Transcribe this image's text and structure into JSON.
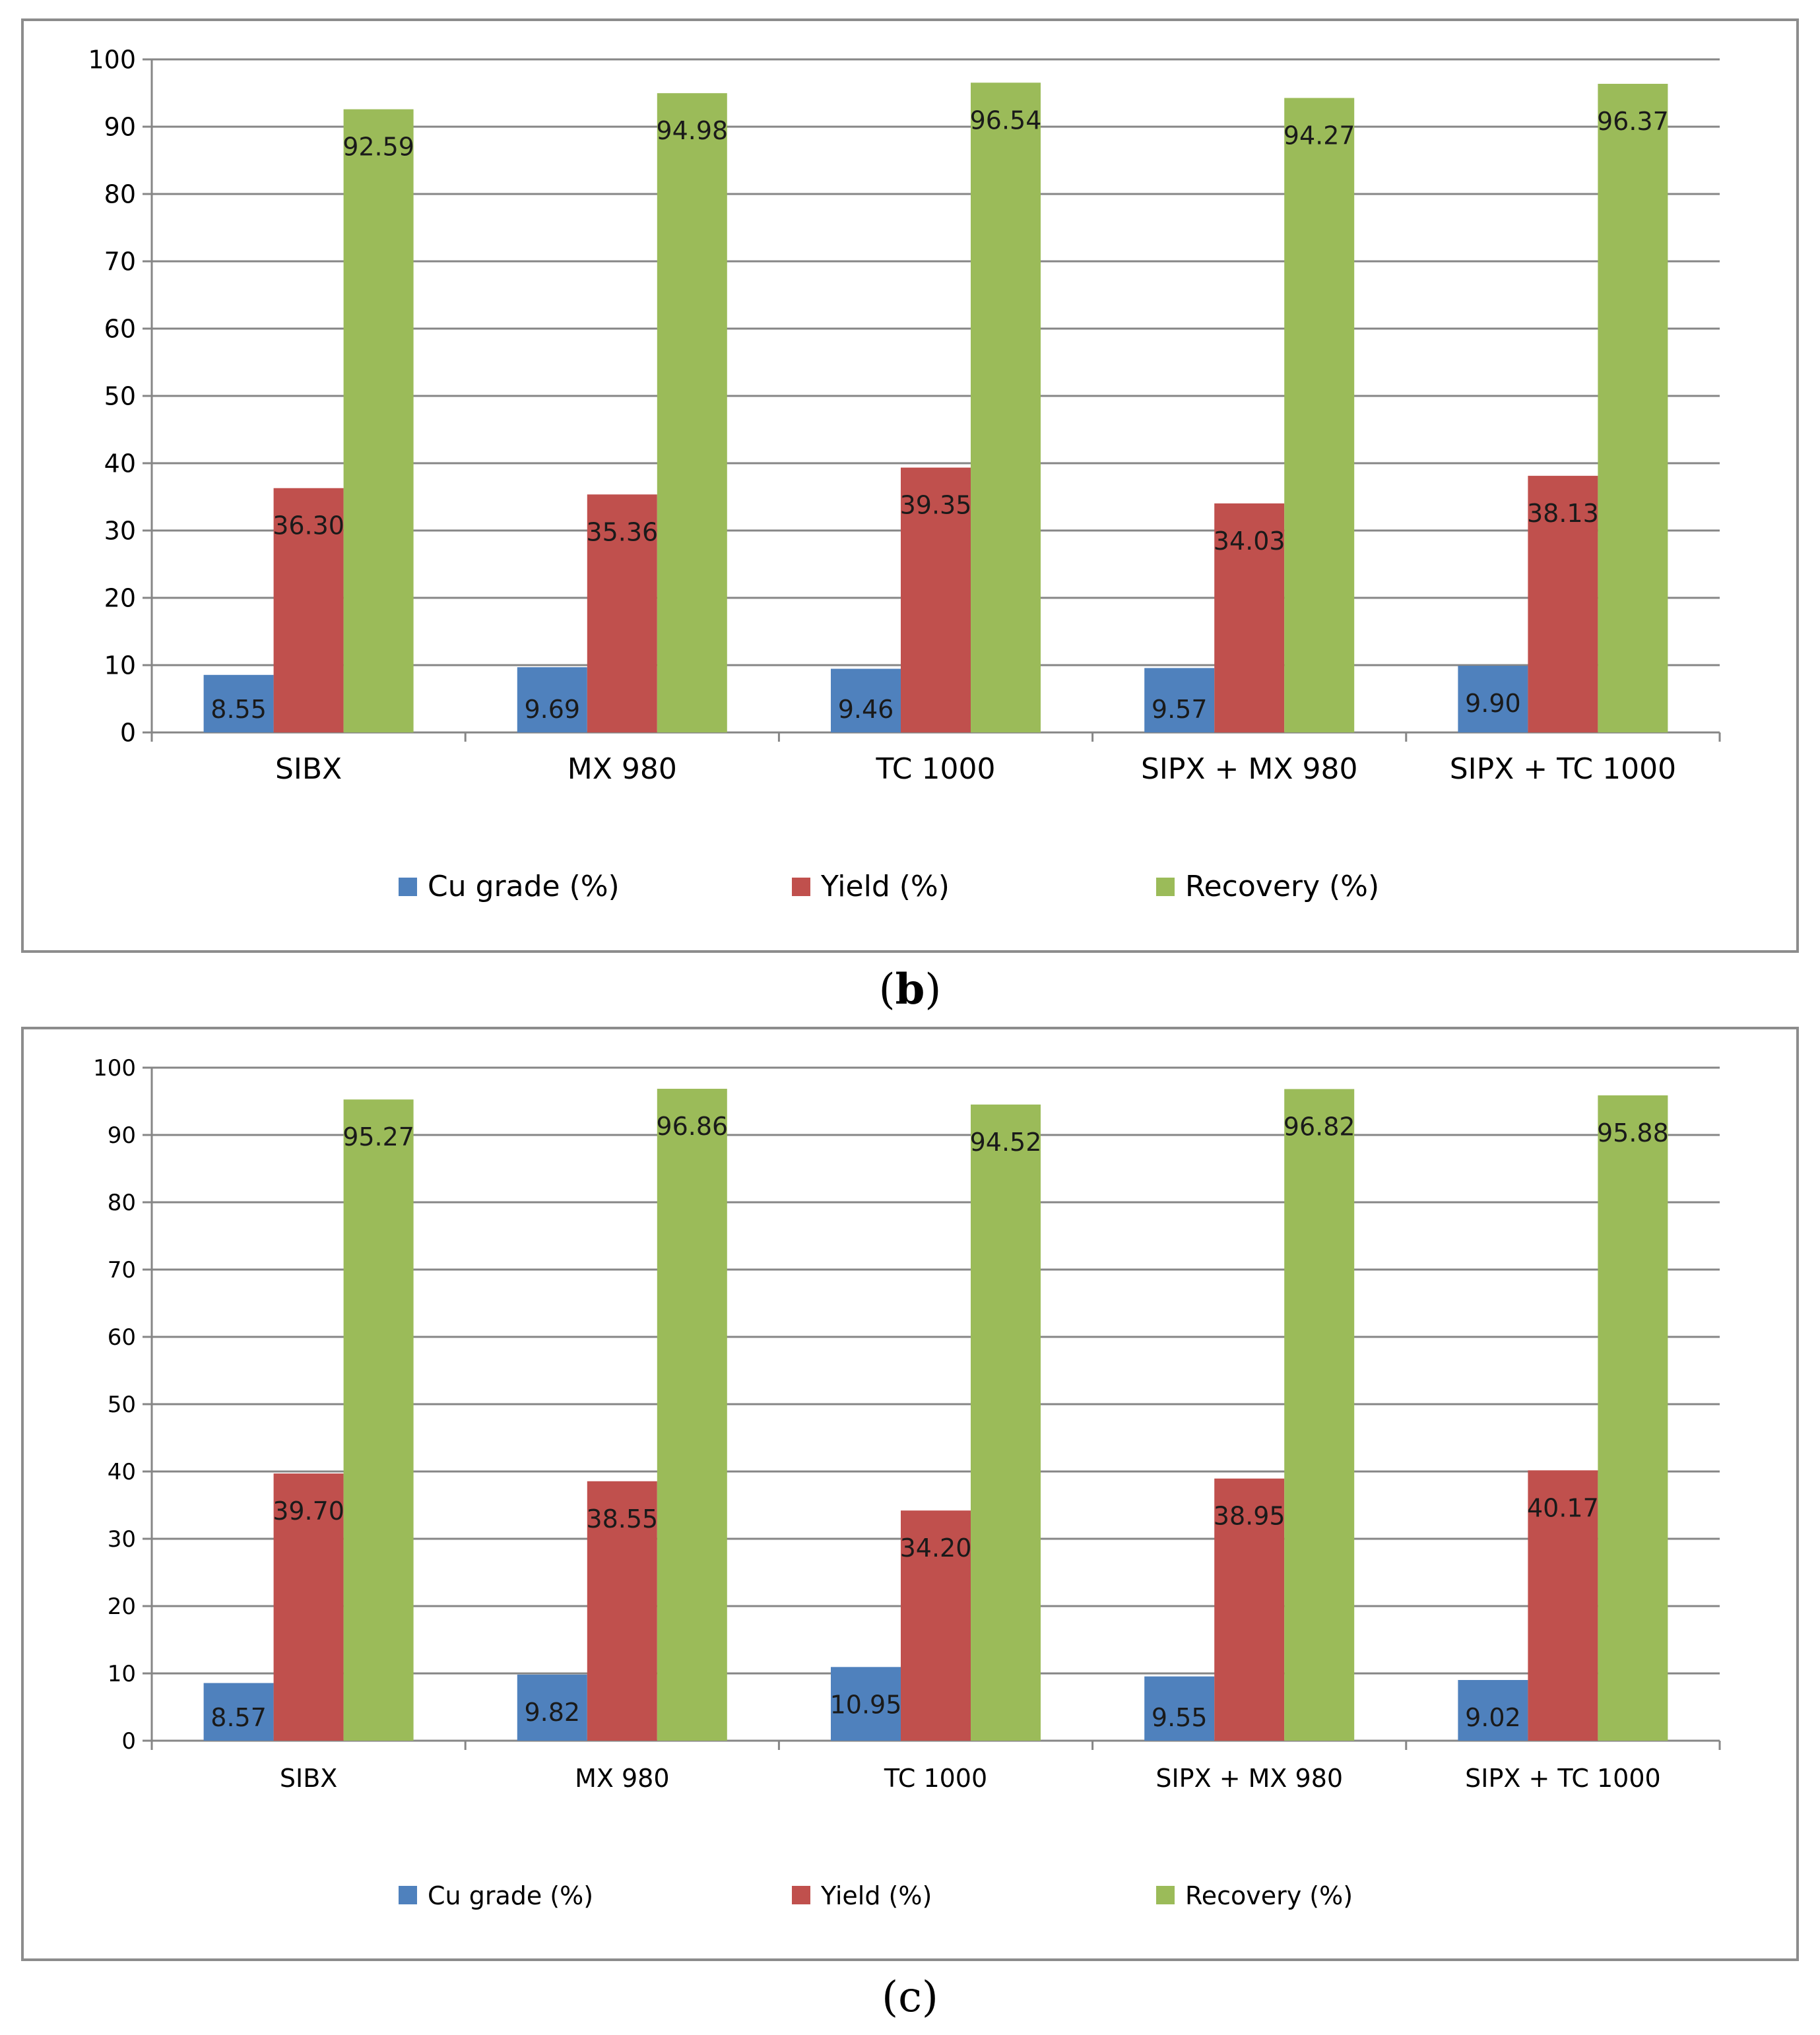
{
  "charts": [
    {
      "id": "b",
      "panel_label": "b",
      "font_weight": "bold"
    },
    {
      "id": "c",
      "panel_label": "c",
      "font_weight": "normal"
    }
  ],
  "chart_data": [
    {
      "type": "bar",
      "title": "",
      "xlabel": "",
      "ylabel": "",
      "ylim": [
        0,
        100
      ],
      "yticks": [
        0,
        10,
        20,
        30,
        40,
        50,
        60,
        70,
        80,
        90,
        100
      ],
      "grid": true,
      "legend_position": "bottom",
      "categories": [
        "SIBX",
        "MX 980",
        "TC 1000",
        "SIPX + MX 980",
        "SIPX + TC 1000"
      ],
      "series": [
        {
          "name": "Cu grade (%)",
          "color": "#4F81BD",
          "values": [
            8.55,
            9.69,
            9.46,
            9.57,
            9.9
          ],
          "labels": [
            "8.55",
            "9.69",
            "9.46",
            "9.57",
            "9.90"
          ]
        },
        {
          "name": "Yield (%)",
          "color": "#C0504D",
          "values": [
            36.3,
            35.36,
            39.35,
            34.03,
            38.13
          ],
          "labels": [
            "36.30",
            "35.36",
            "39.35",
            "34.03",
            "38.13"
          ]
        },
        {
          "name": "Recovery (%)",
          "color": "#9BBB59",
          "values": [
            92.59,
            94.98,
            96.54,
            94.27,
            96.37
          ],
          "labels": [
            "92.59",
            "94.98",
            "96.54",
            "94.27",
            "96.37"
          ]
        }
      ]
    },
    {
      "type": "bar",
      "title": "",
      "xlabel": "",
      "ylabel": "",
      "ylim": [
        0,
        100
      ],
      "yticks": [
        0,
        10,
        20,
        30,
        40,
        50,
        60,
        70,
        80,
        90,
        100
      ],
      "grid": true,
      "legend_position": "bottom",
      "categories": [
        "SIBX",
        "MX 980",
        "TC 1000",
        "SIPX + MX 980",
        "SIPX + TC 1000"
      ],
      "series": [
        {
          "name": "Cu grade (%)",
          "color": "#4F81BD",
          "values": [
            8.57,
            9.82,
            10.95,
            9.55,
            9.02
          ],
          "labels": [
            "8.57",
            "9.82",
            "10.95",
            "9.55",
            "9.02"
          ]
        },
        {
          "name": "Yield (%)",
          "color": "#C0504D",
          "values": [
            39.7,
            38.55,
            34.2,
            38.95,
            40.17
          ],
          "labels": [
            "39.70",
            "38.55",
            "34.20",
            "38.95",
            "40.17"
          ]
        },
        {
          "name": "Recovery (%)",
          "color": "#9BBB59",
          "values": [
            95.27,
            96.86,
            94.52,
            96.82,
            95.88
          ],
          "labels": [
            "95.27",
            "96.86",
            "94.52",
            "96.82",
            "95.88"
          ]
        }
      ]
    }
  ]
}
